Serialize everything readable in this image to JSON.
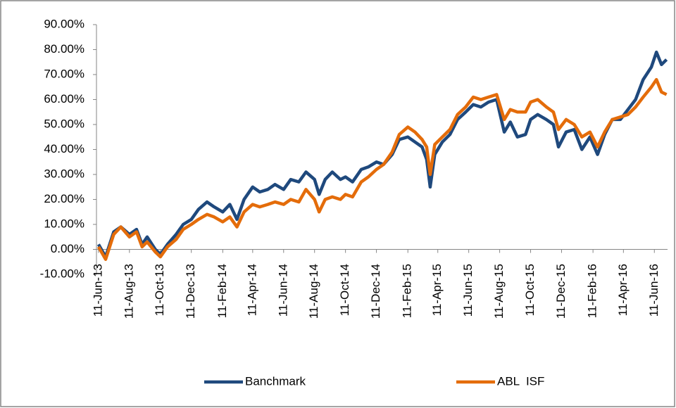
{
  "chart_data": {
    "type": "line",
    "x": [
      "2013-06-11",
      "2013-06-25",
      "2013-07-11",
      "2013-07-25",
      "2013-08-11",
      "2013-08-25",
      "2013-09-05",
      "2013-09-15",
      "2013-10-01",
      "2013-10-11",
      "2013-10-25",
      "2013-11-11",
      "2013-11-25",
      "2013-12-11",
      "2013-12-25",
      "2014-01-11",
      "2014-01-25",
      "2014-02-11",
      "2014-02-25",
      "2014-03-11",
      "2014-03-25",
      "2014-04-11",
      "2014-04-25",
      "2014-05-11",
      "2014-05-25",
      "2014-06-11",
      "2014-06-25",
      "2014-07-11",
      "2014-07-25",
      "2014-08-11",
      "2014-08-20",
      "2014-09-01",
      "2014-09-15",
      "2014-10-01",
      "2014-10-11",
      "2014-10-25",
      "2014-11-11",
      "2014-11-25",
      "2014-12-11",
      "2014-12-25",
      "2015-01-11",
      "2015-01-25",
      "2015-02-11",
      "2015-02-25",
      "2015-03-11",
      "2015-03-20",
      "2015-03-27",
      "2015-04-05",
      "2015-04-20",
      "2015-05-05",
      "2015-05-20",
      "2015-06-05",
      "2015-06-20",
      "2015-07-05",
      "2015-07-20",
      "2015-08-05",
      "2015-08-20",
      "2015-09-01",
      "2015-09-15",
      "2015-10-01",
      "2015-10-11",
      "2015-10-25",
      "2015-11-11",
      "2015-11-25",
      "2015-12-05",
      "2015-12-20",
      "2016-01-05",
      "2016-01-20",
      "2016-02-05",
      "2016-02-20",
      "2016-03-05",
      "2016-03-20",
      "2016-04-05",
      "2016-04-20",
      "2016-05-05",
      "2016-05-20",
      "2016-06-05",
      "2016-06-15",
      "2016-06-25",
      "2016-07-05"
    ],
    "series": [
      {
        "name": "Banchmark",
        "color": "#1f497d",
        "values": [
          2,
          -3,
          7,
          9,
          6,
          8,
          2,
          5,
          0,
          -2,
          2,
          6,
          10,
          12,
          16,
          19,
          17,
          15,
          18,
          12,
          20,
          25,
          23,
          24,
          26,
          24,
          28,
          27,
          31,
          28,
          22,
          28,
          31,
          28,
          29,
          27,
          32,
          33,
          35,
          34,
          38,
          44,
          45,
          43,
          41,
          36,
          25,
          38,
          43,
          46,
          52,
          55,
          58,
          57,
          59,
          60,
          47,
          51,
          45,
          46,
          52,
          54,
          52,
          50,
          41,
          47,
          48,
          40,
          45,
          38,
          46,
          52,
          52,
          56,
          60,
          68,
          73,
          79,
          74,
          76
        ]
      },
      {
        "name": "ABL  ISF",
        "color": "#e46c0a",
        "values": [
          1,
          -4,
          6,
          9,
          5,
          7,
          1,
          3,
          -1,
          -3,
          1,
          4,
          8,
          10,
          12,
          14,
          13,
          11,
          13,
          9,
          15,
          18,
          17,
          18,
          19,
          18,
          20,
          19,
          24,
          20,
          15,
          20,
          21,
          20,
          22,
          21,
          27,
          29,
          32,
          34,
          39,
          46,
          49,
          47,
          44,
          41,
          30,
          42,
          45,
          48,
          54,
          57,
          61,
          60,
          61,
          62,
          52,
          56,
          55,
          55,
          59,
          60,
          57,
          55,
          48,
          52,
          50,
          45,
          47,
          41,
          47,
          52,
          53,
          54,
          57,
          61,
          65,
          68,
          63,
          62
        ]
      }
    ],
    "xlim": [
      "2013-06-07",
      "2016-07-07"
    ],
    "xticks": [
      {
        "value": "2013-06-11",
        "label": "11-Jun-13"
      },
      {
        "value": "2013-08-11",
        "label": "11-Aug-13"
      },
      {
        "value": "2013-10-11",
        "label": "11-Oct-13"
      },
      {
        "value": "2013-12-11",
        "label": "11-Dec-13"
      },
      {
        "value": "2014-02-11",
        "label": "11-Feb-14"
      },
      {
        "value": "2014-04-11",
        "label": "11-Apr-14"
      },
      {
        "value": "2014-06-11",
        "label": "11-Jun-14"
      },
      {
        "value": "2014-08-11",
        "label": "11-Aug-14"
      },
      {
        "value": "2014-10-11",
        "label": "11-Oct-14"
      },
      {
        "value": "2014-12-11",
        "label": "11-Dec-14"
      },
      {
        "value": "2015-02-11",
        "label": "11-Feb-15"
      },
      {
        "value": "2015-04-11",
        "label": "11-Apr-15"
      },
      {
        "value": "2015-06-11",
        "label": "11-Jun-15"
      },
      {
        "value": "2015-08-11",
        "label": "11-Aug-15"
      },
      {
        "value": "2015-10-11",
        "label": "11-Oct-15"
      },
      {
        "value": "2015-12-11",
        "label": "11-Dec-15"
      },
      {
        "value": "2016-02-11",
        "label": "11-Feb-16"
      },
      {
        "value": "2016-04-11",
        "label": "11-Apr-16"
      },
      {
        "value": "2016-06-11",
        "label": "11-Jun-16"
      }
    ],
    "ylim": [
      -10,
      90
    ],
    "yticks": [
      {
        "value": -10,
        "label": "-10.00%"
      },
      {
        "value": 0,
        "label": "0.00%"
      },
      {
        "value": 10,
        "label": "10.00%"
      },
      {
        "value": 20,
        "label": "20.00%"
      },
      {
        "value": 30,
        "label": "30.00%"
      },
      {
        "value": 40,
        "label": "40.00%"
      },
      {
        "value": 50,
        "label": "50.00%"
      },
      {
        "value": 60,
        "label": "60.00%"
      },
      {
        "value": 70,
        "label": "70.00%"
      },
      {
        "value": 80,
        "label": "80.00%"
      },
      {
        "value": 90,
        "label": "90.00%"
      }
    ],
    "grid": false,
    "legend": "bottom"
  }
}
